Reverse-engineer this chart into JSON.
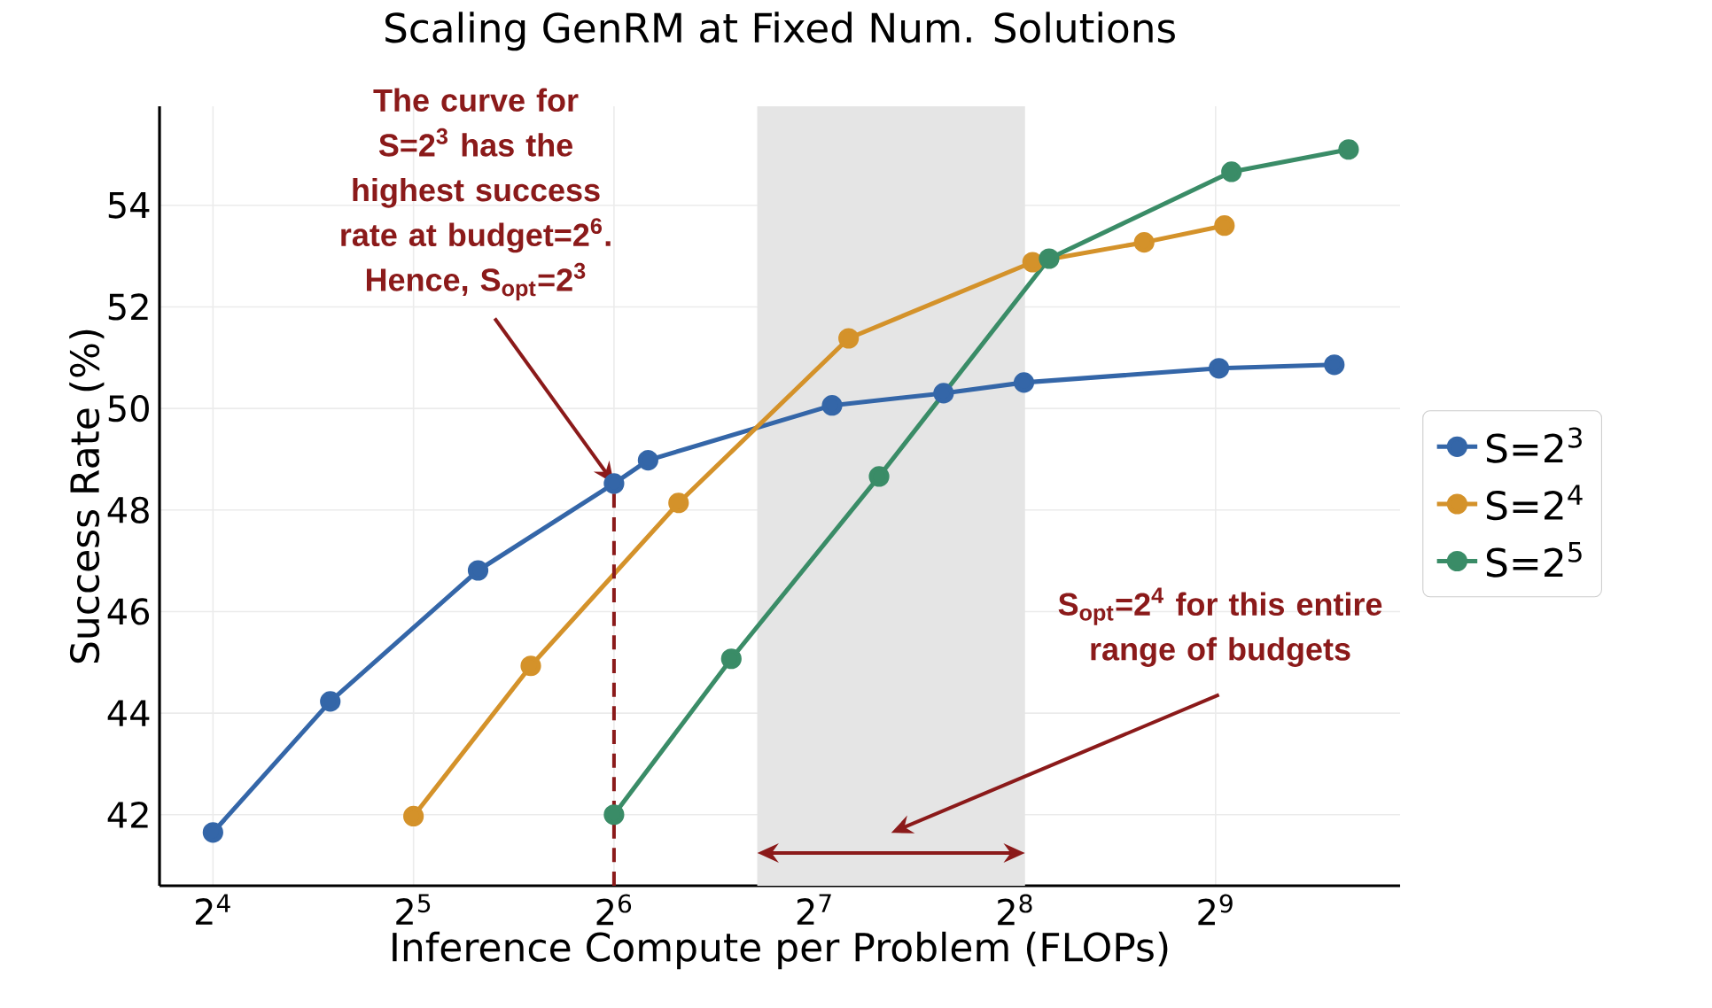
{
  "chart_data": {
    "type": "line",
    "title": "Scaling GenRM at Fixed Num. Solutions",
    "xlabel": "Inference Compute per Problem (FLOPs)",
    "ylabel": "Success Rate (%)",
    "log": "x",
    "xlim": [
      13.3,
      969
    ],
    "ylim": [
      40.6,
      55.95
    ],
    "xticks": [
      {
        "value": 16,
        "label": "2$^{4}$"
      },
      {
        "value": 32,
        "label": "2$^{5}$"
      },
      {
        "value": 64,
        "label": "2$^{6}$"
      },
      {
        "value": 128,
        "label": "2$^{7}$"
      },
      {
        "value": 256,
        "label": "2$^{8}$"
      },
      {
        "value": 512,
        "label": "2$^{9}$"
      }
    ],
    "yticks": [
      42,
      44,
      46,
      48,
      50,
      52,
      54
    ],
    "grid": true,
    "legend": "right",
    "marker": "circle",
    "line_style": "solid",
    "series": [
      {
        "name": "S=2$^{3}$",
        "color": "#3466a8",
        "x": [
          16,
          24,
          40,
          64,
          72,
          136,
          200,
          264,
          518,
          772
        ],
        "values": [
          41.65,
          44.23,
          46.81,
          48.52,
          48.98,
          50.06,
          50.3,
          50.51,
          50.79,
          50.86
        ]
      },
      {
        "name": "S=2$^{4}$",
        "color": "#d4922a",
        "x": [
          32,
          48,
          80,
          144,
          272,
          400,
          528
        ],
        "values": [
          41.97,
          44.93,
          48.14,
          51.38,
          52.88,
          53.27,
          53.6
        ]
      },
      {
        "name": "S=2$^{5}$",
        "color": "#3a8c67",
        "x": [
          64,
          96,
          160,
          288,
          541,
          811
        ],
        "values": [
          42.0,
          45.07,
          48.66,
          52.95,
          54.66,
          55.1
        ]
      }
    ],
    "bands": [
      {
        "axis": "x",
        "from": 105,
        "to": 265,
        "color": "#e5e5e5"
      }
    ],
    "ref_lines": [
      {
        "axis": "x",
        "value": 64,
        "color": "#8b1a1a",
        "line_style": "dashed"
      }
    ],
    "annotations": [
      "The curve for S=2$^{3}$ has the highest success rate at budget=2$^{6}$. Hence, S$_{opt}$=2$^{3}$",
      "S$_{opt}$=2$^{4}$ for this entire range of budgets"
    ]
  }
}
